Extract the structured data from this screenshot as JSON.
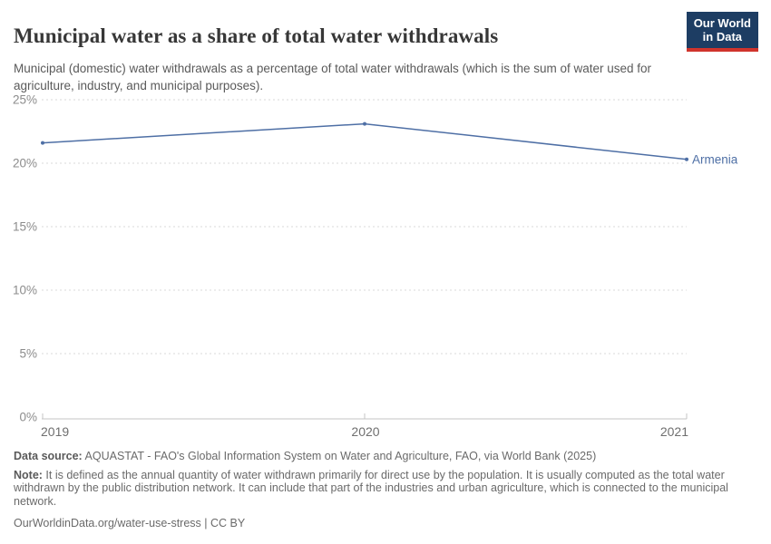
{
  "header": {
    "title": "Municipal water as a share of total water withdrawals",
    "subtitle": "Municipal (domestic) water withdrawals as a percentage of total water withdrawals (which is the sum of water used for agriculture, industry, and municipal purposes)."
  },
  "logo": {
    "line1": "Our World",
    "line2": "in Data"
  },
  "chart_data": {
    "type": "line",
    "title": "Municipal water as a share of total water withdrawals",
    "x": [
      2019,
      2020,
      2021
    ],
    "xtick_labels": [
      "2019",
      "2020",
      "2021"
    ],
    "series": [
      {
        "name": "Armenia",
        "values": [
          21.6,
          23.1,
          20.3
        ],
        "color": "#4e6fa5"
      }
    ],
    "ylim": [
      0,
      25
    ],
    "yticks": [
      0,
      5,
      10,
      15,
      20,
      25
    ],
    "ytick_labels": [
      "0%",
      "5%",
      "10%",
      "15%",
      "20%",
      "25%"
    ],
    "xlabel": "",
    "ylabel": "",
    "grid": "horizontal-dashed",
    "legend_position": "end-of-line-label"
  },
  "footer": {
    "data_source_label": "Data source:",
    "data_source_text": " AQUASTAT - FAO's Global Information System on Water and Agriculture, FAO, via World Bank (2025)",
    "note_label": "Note:",
    "note_text": " It is defined as the annual quantity of water withdrawn primarily for direct use by the population. It is usually computed as the total water withdrawn by the public distribution network. It can include that part of the industries and urban agriculture, which is connected to the municipal network.",
    "url": "OurWorldinData.org/water-use-stress",
    "license": " | CC BY"
  },
  "colors": {
    "line": "#4e6fa5",
    "gridline": "#dadada",
    "axis": "#c4c4c4",
    "ytick_text": "#8c8c8c",
    "xtick_text": "#6f6f6f",
    "logo_bg": "#1d3d63",
    "logo_accent": "#d0342c"
  }
}
